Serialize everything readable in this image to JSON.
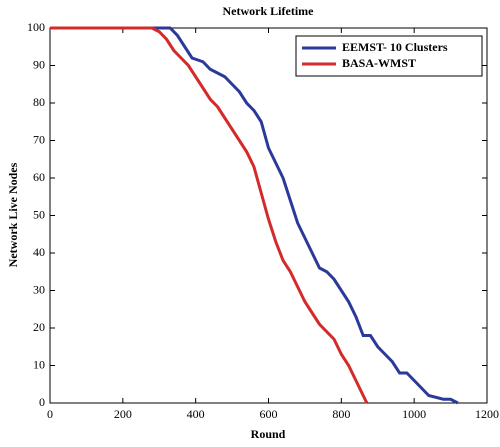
{
  "chart_data": {
    "type": "line",
    "title": "Network Lifetime",
    "xlabel": "Round",
    "ylabel": "Network Live Nodes",
    "xlim": [
      0,
      1200
    ],
    "xticks": [
      0,
      200,
      400,
      600,
      800,
      1000,
      1200
    ],
    "ylim": [
      0,
      100
    ],
    "yticks": [
      0,
      10,
      20,
      30,
      40,
      50,
      60,
      70,
      80,
      90,
      100
    ],
    "legend": "upper right",
    "series": [
      {
        "name": "EEMST- 10 Clusters",
        "color": "#2b3a9a",
        "x": [
          0,
          330,
          350,
          370,
          390,
          420,
          440,
          460,
          480,
          500,
          520,
          540,
          560,
          580,
          600,
          620,
          640,
          660,
          680,
          700,
          720,
          740,
          760,
          780,
          800,
          820,
          840,
          860,
          880,
          900,
          920,
          940,
          960,
          980,
          1000,
          1020,
          1040,
          1080,
          1100,
          1120
        ],
        "values": [
          100,
          100,
          98,
          95,
          92,
          91,
          89,
          88,
          87,
          85,
          83,
          80,
          78,
          75,
          68,
          64,
          60,
          54,
          48,
          44,
          40,
          36,
          35,
          33,
          30,
          27,
          23,
          18,
          18,
          15,
          13,
          11,
          8,
          8,
          6,
          4,
          2,
          1,
          1,
          0
        ]
      },
      {
        "name": "BASA-WMST",
        "color": "#d42a2a",
        "x": [
          0,
          280,
          300,
          320,
          340,
          360,
          380,
          400,
          420,
          440,
          460,
          480,
          500,
          520,
          540,
          560,
          580,
          600,
          620,
          640,
          660,
          680,
          700,
          720,
          740,
          760,
          780,
          800,
          820,
          840,
          860,
          870
        ],
        "values": [
          100,
          100,
          99,
          97,
          94,
          92,
          90,
          87,
          84,
          81,
          79,
          76,
          73,
          70,
          67,
          63,
          56,
          49,
          43,
          38,
          35,
          31,
          27,
          24,
          21,
          19,
          17,
          13,
          10,
          6,
          2,
          0
        ]
      }
    ]
  }
}
